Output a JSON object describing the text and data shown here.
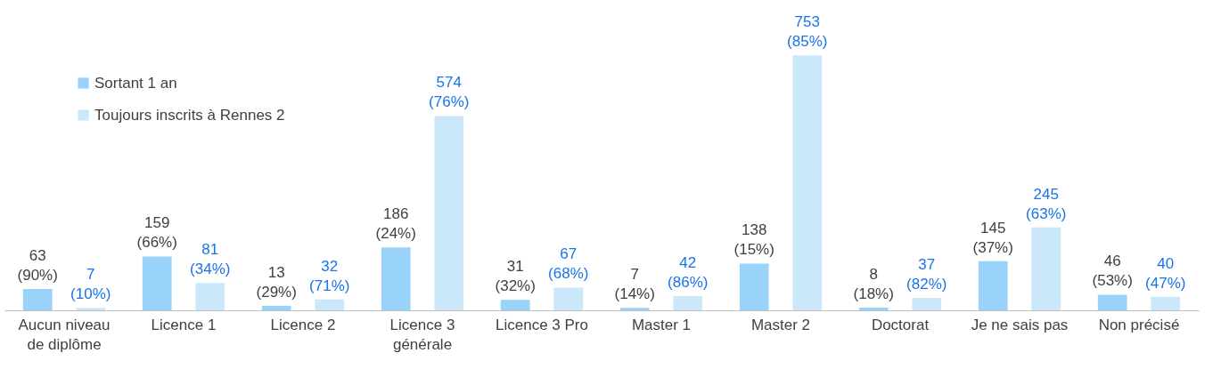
{
  "chart_data": {
    "type": "bar",
    "categories": [
      "Aucun niveau\nde diplôme",
      "Licence 1",
      "Licence 2",
      "Licence 3\ngénérale",
      "Licence 3 Pro",
      "Master 1",
      "Master 2",
      "Doctorat",
      "Je ne sais pas",
      "Non précisé"
    ],
    "series": [
      {
        "name": "Sortant 1 an",
        "color": "#99d3fa",
        "values": [
          63,
          159,
          13,
          186,
          31,
          7,
          138,
          8,
          145,
          46
        ],
        "value_labels": [
          "63\n(90%)",
          "159\n(66%)",
          "13\n(29%)",
          "186\n(24%)",
          "31\n(32%)",
          "7\n(14%)",
          "138\n(15%)",
          "8\n(18%)",
          "145\n(37%)",
          "46\n(53%)"
        ]
      },
      {
        "name": "Toujours inscrits à Rennes 2",
        "color": "#cbe8fb",
        "values": [
          7,
          81,
          32,
          574,
          67,
          42,
          753,
          37,
          245,
          40
        ],
        "value_labels": [
          "7\n(10%)",
          "81\n(34%)",
          "32\n(71%)",
          "574\n(76%)",
          "67\n(68%)",
          "42\n(86%)",
          "753\n(85%)",
          "37\n(82%)",
          "245\n(63%)",
          "40\n(47%)"
        ]
      }
    ],
    "legend": "top left",
    "grid": false
  }
}
